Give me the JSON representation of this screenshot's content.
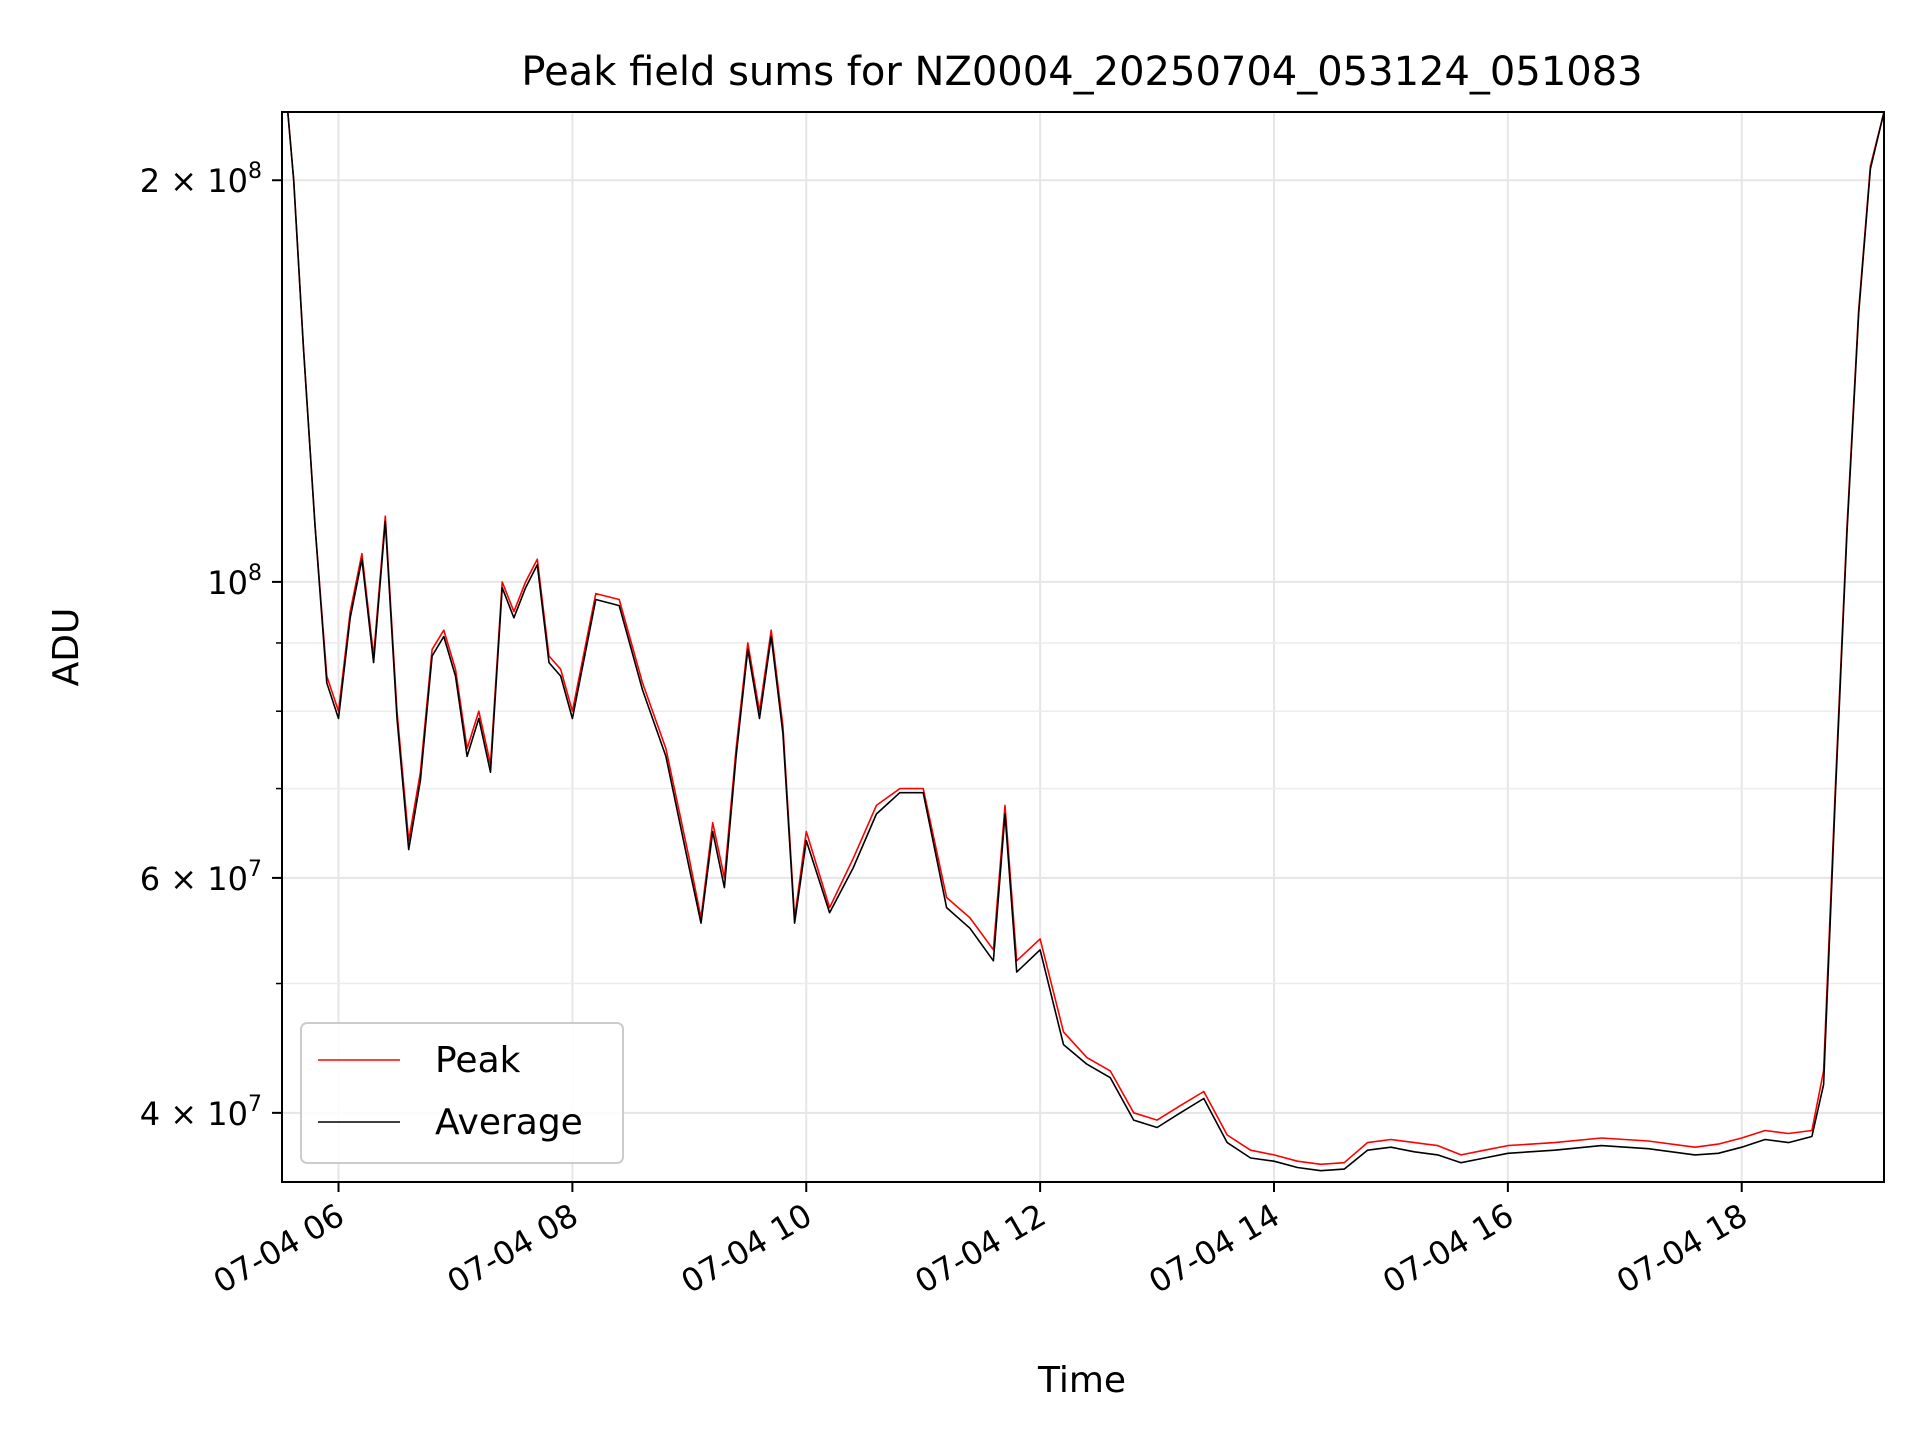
{
  "chart_data": {
    "type": "line",
    "title": "Peak field sums for NZ0004_20250704_053124_051083",
    "xlabel": "Time",
    "ylabel": "ADU",
    "yscale": "log",
    "ylim": [
      35500000,
      225000000
    ],
    "xlim": [
      "2025-07-04 05:31",
      "2025-07-04 19:13"
    ],
    "grid": true,
    "legend_position": "lower-left",
    "x_ticks": [
      "07-04 06",
      "07-04 08",
      "07-04 10",
      "07-04 12",
      "07-04 14",
      "07-04 16",
      "07-04 18"
    ],
    "y_ticks": [
      {
        "mantissa": "2",
        "exponent": "8",
        "value": 200000000
      },
      {
        "mantissa": "",
        "exponent": "8",
        "value": 100000000
      },
      {
        "mantissa": "6",
        "exponent": "7",
        "value": 60000000
      },
      {
        "mantissa": "4",
        "exponent": "7",
        "value": 40000000
      }
    ],
    "series": [
      {
        "name": "Peak",
        "color": "#ff0000",
        "x": [
          "2025-07-04 05:31",
          "2025-07-04 05:34",
          "2025-07-04 05:37",
          "2025-07-04 05:42",
          "2025-07-04 05:48",
          "2025-07-04 05:54",
          "2025-07-04 06:00",
          "2025-07-04 06:06",
          "2025-07-04 06:12",
          "2025-07-04 06:18",
          "2025-07-04 06:24",
          "2025-07-04 06:30",
          "2025-07-04 06:36",
          "2025-07-04 06:42",
          "2025-07-04 06:48",
          "2025-07-04 06:54",
          "2025-07-04 07:00",
          "2025-07-04 07:06",
          "2025-07-04 07:12",
          "2025-07-04 07:18",
          "2025-07-04 07:24",
          "2025-07-04 07:30",
          "2025-07-04 07:36",
          "2025-07-04 07:42",
          "2025-07-04 07:48",
          "2025-07-04 07:54",
          "2025-07-04 08:00",
          "2025-07-04 08:12",
          "2025-07-04 08:24",
          "2025-07-04 08:36",
          "2025-07-04 08:48",
          "2025-07-04 09:00",
          "2025-07-04 09:06",
          "2025-07-04 09:12",
          "2025-07-04 09:18",
          "2025-07-04 09:24",
          "2025-07-04 09:30",
          "2025-07-04 09:36",
          "2025-07-04 09:42",
          "2025-07-04 09:48",
          "2025-07-04 09:54",
          "2025-07-04 10:00",
          "2025-07-04 10:12",
          "2025-07-04 10:24",
          "2025-07-04 10:36",
          "2025-07-04 10:48",
          "2025-07-04 11:00",
          "2025-07-04 11:12",
          "2025-07-04 11:24",
          "2025-07-04 11:36",
          "2025-07-04 11:42",
          "2025-07-04 11:48",
          "2025-07-04 12:00",
          "2025-07-04 12:12",
          "2025-07-04 12:24",
          "2025-07-04 12:36",
          "2025-07-04 12:48",
          "2025-07-04 13:00",
          "2025-07-04 13:12",
          "2025-07-04 13:24",
          "2025-07-04 13:36",
          "2025-07-04 13:48",
          "2025-07-04 14:00",
          "2025-07-04 14:12",
          "2025-07-04 14:24",
          "2025-07-04 14:36",
          "2025-07-04 14:48",
          "2025-07-04 15:00",
          "2025-07-04 15:12",
          "2025-07-04 15:24",
          "2025-07-04 15:36",
          "2025-07-04 15:48",
          "2025-07-04 16:00",
          "2025-07-04 16:24",
          "2025-07-04 16:48",
          "2025-07-04 17:12",
          "2025-07-04 17:36",
          "2025-07-04 17:48",
          "2025-07-04 18:00",
          "2025-07-04 18:12",
          "2025-07-04 18:24",
          "2025-07-04 18:36",
          "2025-07-04 18:42",
          "2025-07-04 18:48",
          "2025-07-04 18:54",
          "2025-07-04 19:00",
          "2025-07-04 19:06",
          "2025-07-04 19:13"
        ],
        "values": [
          225000000,
          225000000,
          200000000,
          150000000,
          110000000,
          85000000,
          80000000,
          95000000,
          105000000,
          88000000,
          112000000,
          80000000,
          64000000,
          72000000,
          89000000,
          92000000,
          86000000,
          75000000,
          80000000,
          73000000,
          100000000,
          95000000,
          100000000,
          104000000,
          88000000,
          86000000,
          80000000,
          98000000,
          97000000,
          84000000,
          75000000,
          62000000,
          56000000,
          66000000,
          60000000,
          75000000,
          90000000,
          80000000,
          92000000,
          78000000,
          56000000,
          65000000,
          57000000,
          62000000,
          68000000,
          70000000,
          70000000,
          58000000,
          56000000,
          53000000,
          68000000,
          52000000,
          54000000,
          46000000,
          44000000,
          43000000,
          40000000,
          39500000,
          40500000,
          41500000,
          38500000,
          37500000,
          37200000,
          36800000,
          36600000,
          36700000,
          38000000,
          38200000,
          38000000,
          37800000,
          37200000,
          37500000,
          37800000,
          38000000,
          38300000,
          38100000,
          37700000,
          37900000,
          38300000,
          38800000,
          38600000,
          38800000,
          43000000,
          70000000,
          110000000,
          160000000,
          205000000,
          225000000
        ]
      },
      {
        "name": "Average",
        "color": "#000000",
        "x": [
          "2025-07-04 05:31",
          "2025-07-04 05:34",
          "2025-07-04 05:37",
          "2025-07-04 05:42",
          "2025-07-04 05:48",
          "2025-07-04 05:54",
          "2025-07-04 06:00",
          "2025-07-04 06:06",
          "2025-07-04 06:12",
          "2025-07-04 06:18",
          "2025-07-04 06:24",
          "2025-07-04 06:30",
          "2025-07-04 06:36",
          "2025-07-04 06:42",
          "2025-07-04 06:48",
          "2025-07-04 06:54",
          "2025-07-04 07:00",
          "2025-07-04 07:06",
          "2025-07-04 07:12",
          "2025-07-04 07:18",
          "2025-07-04 07:24",
          "2025-07-04 07:30",
          "2025-07-04 07:36",
          "2025-07-04 07:42",
          "2025-07-04 07:48",
          "2025-07-04 07:54",
          "2025-07-04 08:00",
          "2025-07-04 08:12",
          "2025-07-04 08:24",
          "2025-07-04 08:36",
          "2025-07-04 08:48",
          "2025-07-04 09:00",
          "2025-07-04 09:06",
          "2025-07-04 09:12",
          "2025-07-04 09:18",
          "2025-07-04 09:24",
          "2025-07-04 09:30",
          "2025-07-04 09:36",
          "2025-07-04 09:42",
          "2025-07-04 09:48",
          "2025-07-04 09:54",
          "2025-07-04 10:00",
          "2025-07-04 10:12",
          "2025-07-04 10:24",
          "2025-07-04 10:36",
          "2025-07-04 10:48",
          "2025-07-04 11:00",
          "2025-07-04 11:12",
          "2025-07-04 11:24",
          "2025-07-04 11:36",
          "2025-07-04 11:42",
          "2025-07-04 11:48",
          "2025-07-04 12:00",
          "2025-07-04 12:12",
          "2025-07-04 12:24",
          "2025-07-04 12:36",
          "2025-07-04 12:48",
          "2025-07-04 13:00",
          "2025-07-04 13:12",
          "2025-07-04 13:24",
          "2025-07-04 13:36",
          "2025-07-04 13:48",
          "2025-07-04 14:00",
          "2025-07-04 14:12",
          "2025-07-04 14:24",
          "2025-07-04 14:36",
          "2025-07-04 14:48",
          "2025-07-04 15:00",
          "2025-07-04 15:12",
          "2025-07-04 15:24",
          "2025-07-04 15:36",
          "2025-07-04 15:48",
          "2025-07-04 16:00",
          "2025-07-04 16:24",
          "2025-07-04 16:48",
          "2025-07-04 17:12",
          "2025-07-04 17:36",
          "2025-07-04 17:48",
          "2025-07-04 18:00",
          "2025-07-04 18:12",
          "2025-07-04 18:24",
          "2025-07-04 18:36",
          "2025-07-04 18:42",
          "2025-07-04 18:48",
          "2025-07-04 18:54",
          "2025-07-04 19:00",
          "2025-07-04 19:06",
          "2025-07-04 19:13"
        ],
        "values": [
          225000000,
          225000000,
          200000000,
          150000000,
          110000000,
          84000000,
          79000000,
          94000000,
          104000000,
          87000000,
          111000000,
          79000000,
          63000000,
          71000000,
          88000000,
          91000000,
          85000000,
          74000000,
          79000000,
          72000000,
          99000000,
          94000000,
          99000000,
          103000000,
          87000000,
          85000000,
          79000000,
          97000000,
          96000000,
          83000000,
          74000000,
          61000000,
          55500000,
          65000000,
          59000000,
          74000000,
          89000000,
          79000000,
          91000000,
          77000000,
          55500000,
          64000000,
          56500000,
          61000000,
          67000000,
          69500000,
          69500000,
          57000000,
          55000000,
          52000000,
          67000000,
          51000000,
          53000000,
          45000000,
          43500000,
          42500000,
          39500000,
          39000000,
          40000000,
          41000000,
          38000000,
          37000000,
          36800000,
          36400000,
          36200000,
          36300000,
          37500000,
          37700000,
          37400000,
          37200000,
          36700000,
          37000000,
          37300000,
          37500000,
          37800000,
          37600000,
          37200000,
          37300000,
          37700000,
          38200000,
          38000000,
          38400000,
          42000000,
          69000000,
          109000000,
          159000000,
          204000000,
          225000000
        ]
      }
    ]
  }
}
